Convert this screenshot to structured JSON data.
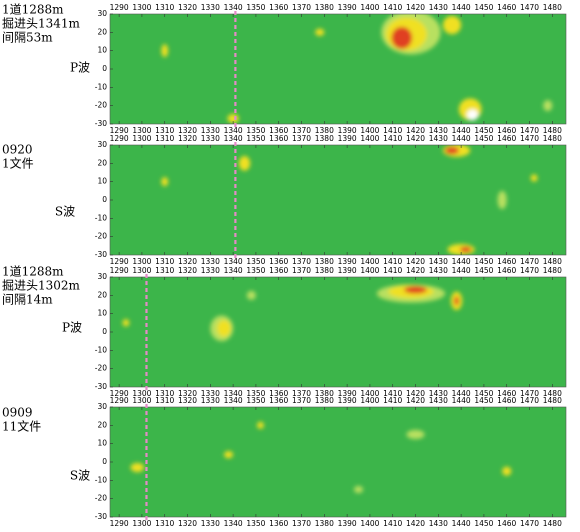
{
  "chart_data": [
    {
      "type": "heatmap",
      "labels": [
        "1道1288m",
        "掘进头1341m",
        "间隔53m"
      ],
      "wave": "P波",
      "marker_x": 1341,
      "xlim": [
        1286,
        1486
      ],
      "ylim": [
        -30,
        30
      ],
      "xticks": [
        1290,
        1300,
        1310,
        1320,
        1330,
        1340,
        1350,
        1360,
        1370,
        1380,
        1390,
        1400,
        1410,
        1420,
        1430,
        1440,
        1450,
        1460,
        1470,
        1480
      ],
      "yticks": [
        30,
        20,
        10,
        0,
        -10,
        -20,
        -30
      ],
      "background": "#3cb54a",
      "blobs": [
        {
          "x": 1418,
          "y": 20,
          "w": 26,
          "h": 24,
          "color": "#b8e060"
        },
        {
          "x": 1416,
          "y": 19,
          "w": 18,
          "h": 18,
          "color": "#f0e020"
        },
        {
          "x": 1414,
          "y": 17,
          "w": 9,
          "h": 12,
          "color": "#e04020"
        },
        {
          "x": 1436,
          "y": 24,
          "w": 8,
          "h": 10,
          "color": "#f0e020"
        },
        {
          "x": 1444,
          "y": -22,
          "w": 10,
          "h": 12,
          "color": "#f0e020"
        },
        {
          "x": 1445,
          "y": -25,
          "w": 5,
          "h": 6,
          "color": "#ffffff"
        },
        {
          "x": 1310,
          "y": 10,
          "w": 3,
          "h": 7,
          "color": "#f0e020"
        },
        {
          "x": 1378,
          "y": 20,
          "w": 4,
          "h": 4,
          "color": "#f0e020"
        },
        {
          "x": 1340,
          "y": -27,
          "w": 5,
          "h": 5,
          "color": "#f0e020"
        },
        {
          "x": 1478,
          "y": -20,
          "w": 4,
          "h": 6,
          "color": "#b8e060"
        }
      ]
    },
    {
      "type": "heatmap",
      "labels": [
        "0920",
        "1文件"
      ],
      "wave": "S波",
      "marker_x": 1341,
      "xlim": [
        1286,
        1486
      ],
      "ylim": [
        -30,
        30
      ],
      "xticks": [
        1290,
        1300,
        1310,
        1320,
        1330,
        1340,
        1350,
        1360,
        1370,
        1380,
        1390,
        1400,
        1410,
        1420,
        1430,
        1440,
        1450,
        1460,
        1470,
        1480
      ],
      "yticks": [
        30,
        20,
        10,
        0,
        -10,
        -20,
        -30
      ],
      "background": "#3cb54a",
      "blobs": [
        {
          "x": 1438,
          "y": 27,
          "w": 12,
          "h": 7,
          "color": "#f0e020"
        },
        {
          "x": 1436,
          "y": 27,
          "w": 6,
          "h": 4,
          "color": "#e04020"
        },
        {
          "x": 1440,
          "y": -27,
          "w": 12,
          "h": 6,
          "color": "#f0e020"
        },
        {
          "x": 1442,
          "y": -27,
          "w": 5,
          "h": 3,
          "color": "#e04020"
        },
        {
          "x": 1345,
          "y": 20,
          "w": 5,
          "h": 8,
          "color": "#f0e020"
        },
        {
          "x": 1310,
          "y": 10,
          "w": 3,
          "h": 5,
          "color": "#f0e020"
        },
        {
          "x": 1458,
          "y": 0,
          "w": 4,
          "h": 10,
          "color": "#b8e060"
        },
        {
          "x": 1472,
          "y": 12,
          "w": 3,
          "h": 4,
          "color": "#f0e020"
        }
      ]
    },
    {
      "type": "heatmap",
      "labels": [
        "1道1288m",
        "掘进头1302m",
        "间隔14m"
      ],
      "wave": "P波",
      "marker_x": 1302,
      "xlim": [
        1286,
        1486
      ],
      "ylim": [
        -30,
        30
      ],
      "xticks": [
        1290,
        1300,
        1310,
        1320,
        1330,
        1340,
        1350,
        1360,
        1370,
        1380,
        1390,
        1400,
        1410,
        1420,
        1430,
        1440,
        1450,
        1460,
        1470,
        1480
      ],
      "yticks": [
        30,
        20,
        10,
        0,
        -10,
        -20,
        -30
      ],
      "background": "#3cb54a",
      "blobs": [
        {
          "x": 1418,
          "y": 21,
          "w": 30,
          "h": 10,
          "color": "#b8e060"
        },
        {
          "x": 1418,
          "y": 22,
          "w": 20,
          "h": 7,
          "color": "#f0e020"
        },
        {
          "x": 1420,
          "y": 23,
          "w": 10,
          "h": 4,
          "color": "#e04020"
        },
        {
          "x": 1438,
          "y": 17,
          "w": 5,
          "h": 10,
          "color": "#f0e020"
        },
        {
          "x": 1438,
          "y": 17,
          "w": 2,
          "h": 5,
          "color": "#e04020"
        },
        {
          "x": 1335,
          "y": 2,
          "w": 10,
          "h": 14,
          "color": "#b8e060"
        },
        {
          "x": 1336,
          "y": 2,
          "w": 6,
          "h": 9,
          "color": "#f0e020"
        },
        {
          "x": 1293,
          "y": 5,
          "w": 3,
          "h": 4,
          "color": "#f0e020"
        },
        {
          "x": 1348,
          "y": 20,
          "w": 4,
          "h": 5,
          "color": "#b8e060"
        }
      ]
    },
    {
      "type": "heatmap",
      "labels": [
        "0909",
        "11文件"
      ],
      "wave": "S波",
      "marker_x": 1302,
      "xlim": [
        1286,
        1486
      ],
      "ylim": [
        -30,
        30
      ],
      "xticks": [
        1290,
        1300,
        1310,
        1320,
        1330,
        1340,
        1350,
        1360,
        1370,
        1380,
        1390,
        1400,
        1410,
        1420,
        1430,
        1440,
        1450,
        1460,
        1470,
        1480
      ],
      "yticks": [
        30,
        20,
        10,
        0,
        -10,
        -20,
        -30
      ],
      "background": "#3cb54a",
      "blobs": [
        {
          "x": 1298,
          "y": -3,
          "w": 6,
          "h": 5,
          "color": "#f0e020"
        },
        {
          "x": 1338,
          "y": 4,
          "w": 4,
          "h": 4,
          "color": "#f0e020"
        },
        {
          "x": 1352,
          "y": 20,
          "w": 3,
          "h": 4,
          "color": "#f0e020"
        },
        {
          "x": 1420,
          "y": 15,
          "w": 8,
          "h": 5,
          "color": "#b8e060"
        },
        {
          "x": 1460,
          "y": -5,
          "w": 4,
          "h": 5,
          "color": "#f0e020"
        },
        {
          "x": 1395,
          "y": -15,
          "w": 4,
          "h": 4,
          "color": "#b8e060"
        }
      ]
    }
  ]
}
